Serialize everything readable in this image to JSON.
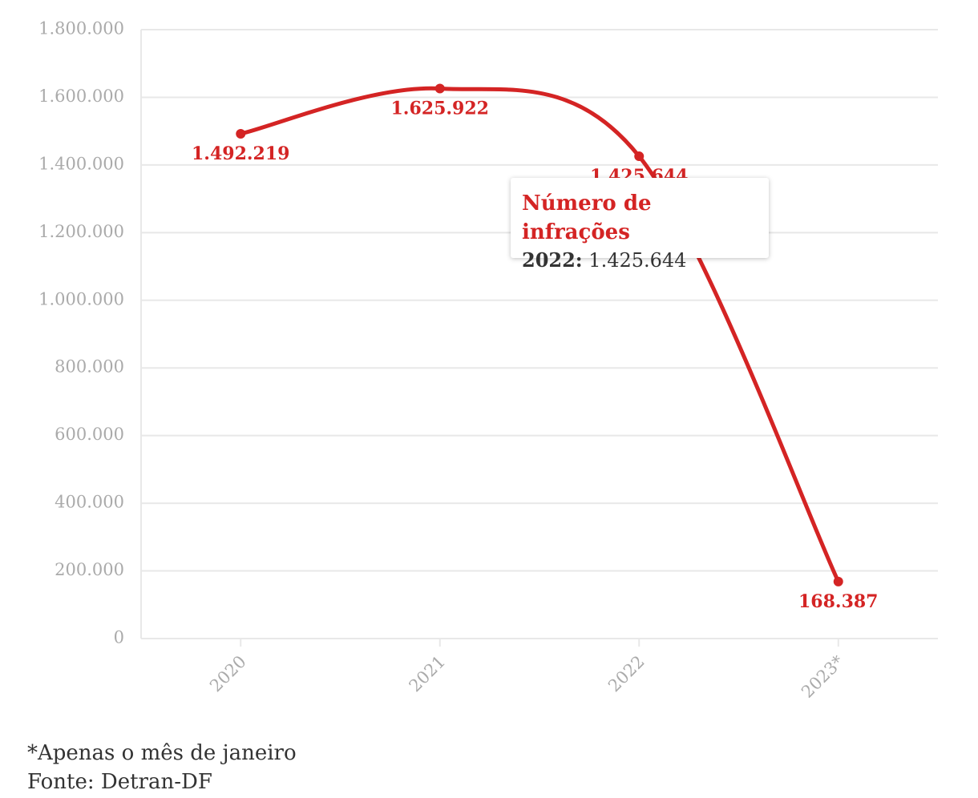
{
  "chart_data": {
    "type": "line",
    "categories": [
      "2020",
      "2021",
      "2022",
      "2023*"
    ],
    "series": [
      {
        "name": "Número de infrações",
        "color": "#d42424",
        "values": [
          1492219,
          1625922,
          1425644,
          168387
        ],
        "value_labels": [
          "1.492.219",
          "1.625.922",
          "1.425.644",
          "168.387"
        ]
      }
    ],
    "ylim": [
      0,
      1800000
    ],
    "yticks": [
      0,
      {
        "value": 200000,
        "label": "200.000"
      },
      {
        "value": 400000,
        "label": "400.000"
      },
      {
        "value": 600000,
        "label": "600.000"
      },
      {
        "value": 800000,
        "label": "800.000"
      },
      {
        "value": 1000000,
        "label": "1.000.000"
      },
      {
        "value": 1200000,
        "label": "1.200.000"
      },
      {
        "value": 1400000,
        "label": "1.400.000"
      },
      {
        "value": 1600000,
        "label": "1.600.000"
      },
      {
        "value": 1800000,
        "label": "1.800.000"
      }
    ],
    "grid": true,
    "tooltip": {
      "category": "2022:",
      "value": "1.425.644"
    },
    "notes": [
      "*Apenas o mês de janeiro",
      "Fonte: Detran-DF"
    ]
  }
}
